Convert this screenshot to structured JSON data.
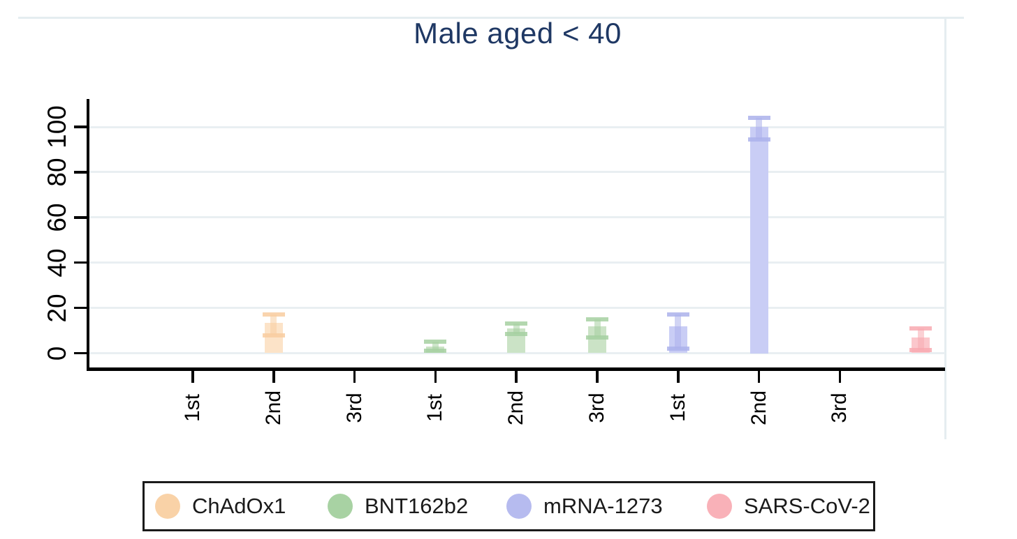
{
  "title": "Male aged < 40",
  "colors": {
    "title_text": "#1f3864",
    "axis": "#000000",
    "gridline": "#e9eff2",
    "outer_frame": "#e5edf0",
    "legend_border": "#1a1a1a",
    "tick_label": "#000000"
  },
  "chart_data": {
    "type": "bar",
    "title": "Male aged < 40",
    "xlabel": "",
    "ylabel": "",
    "ylim": [
      0,
      110
    ],
    "yticks": [
      0,
      20,
      40,
      60,
      80,
      100
    ],
    "grid": true,
    "legend_position": "bottom-outside",
    "note": "bars with capped confidence-interval whiskers; x axis groups doses per vaccine",
    "x_slots": [
      {
        "label": "1st",
        "group": "ChAdOx1",
        "value": null,
        "ci_low": null,
        "ci_high": null
      },
      {
        "label": "2nd",
        "group": "ChAdOx1",
        "value": 13.5,
        "ci_low": 8,
        "ci_high": 17
      },
      {
        "label": "3rd",
        "group": "ChAdOx1",
        "value": null,
        "ci_low": null,
        "ci_high": null
      },
      {
        "label": "1st",
        "group": "BNT162b2",
        "value": 3,
        "ci_low": 1,
        "ci_high": 5
      },
      {
        "label": "2nd",
        "group": "BNT162b2",
        "value": 11,
        "ci_low": 8.5,
        "ci_high": 13
      },
      {
        "label": "3rd",
        "group": "BNT162b2",
        "value": 12,
        "ci_low": 7,
        "ci_high": 15
      },
      {
        "label": "1st",
        "group": "mRNA-1273",
        "value": 12,
        "ci_low": 2,
        "ci_high": 17
      },
      {
        "label": "2nd",
        "group": "mRNA-1273",
        "value": 100,
        "ci_low": 94.5,
        "ci_high": 104
      },
      {
        "label": "3rd",
        "group": "mRNA-1273",
        "value": null,
        "ci_low": null,
        "ci_high": null
      },
      {
        "label": "",
        "group": "SARS-CoV-2",
        "value": 7,
        "ci_low": 1.5,
        "ci_high": 11
      }
    ],
    "series_colors": {
      "ChAdOx1": {
        "fill": "#fce3c8",
        "accent": "#f8cda0"
      },
      "BNT162b2": {
        "fill": "#cbe3c6",
        "accent": "#a6d0a1"
      },
      "mRNA-1273": {
        "fill": "#c9cdf5",
        "accent": "#abb1eb"
      },
      "SARS-CoV-2": {
        "fill": "#fbc7cc",
        "accent": "#f8a9b0"
      }
    }
  },
  "legend": {
    "items": [
      {
        "label": "ChAdOx1",
        "color": "#f9d2a7"
      },
      {
        "label": "BNT162b2",
        "color": "#a8d2a3"
      },
      {
        "label": "mRNA-1273",
        "color": "#b6bbef"
      },
      {
        "label": "SARS-CoV-2",
        "color": "#f9b1b8"
      }
    ]
  }
}
